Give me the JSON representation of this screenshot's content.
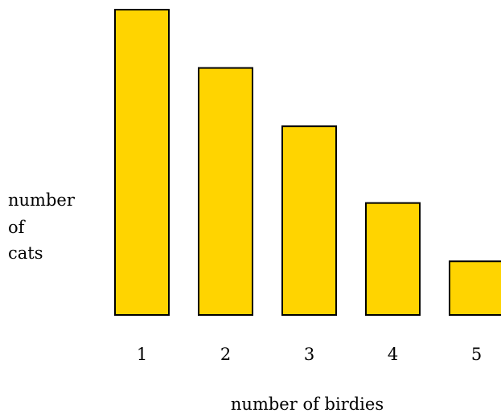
{
  "chart_data": {
    "type": "bar",
    "categories": [
      "1",
      "2",
      "3",
      "4",
      "5"
    ],
    "values": [
      100,
      81,
      62,
      37,
      18
    ],
    "xlabel": "number of birdies",
    "ylabel_lines": [
      "number",
      "of",
      "cats"
    ],
    "ylim": [
      0,
      100
    ],
    "grid": false,
    "colors": {
      "bar_fill": "#ffd400",
      "bar_stroke": "#000000",
      "text": "#000000",
      "background": "#ffffff"
    }
  }
}
